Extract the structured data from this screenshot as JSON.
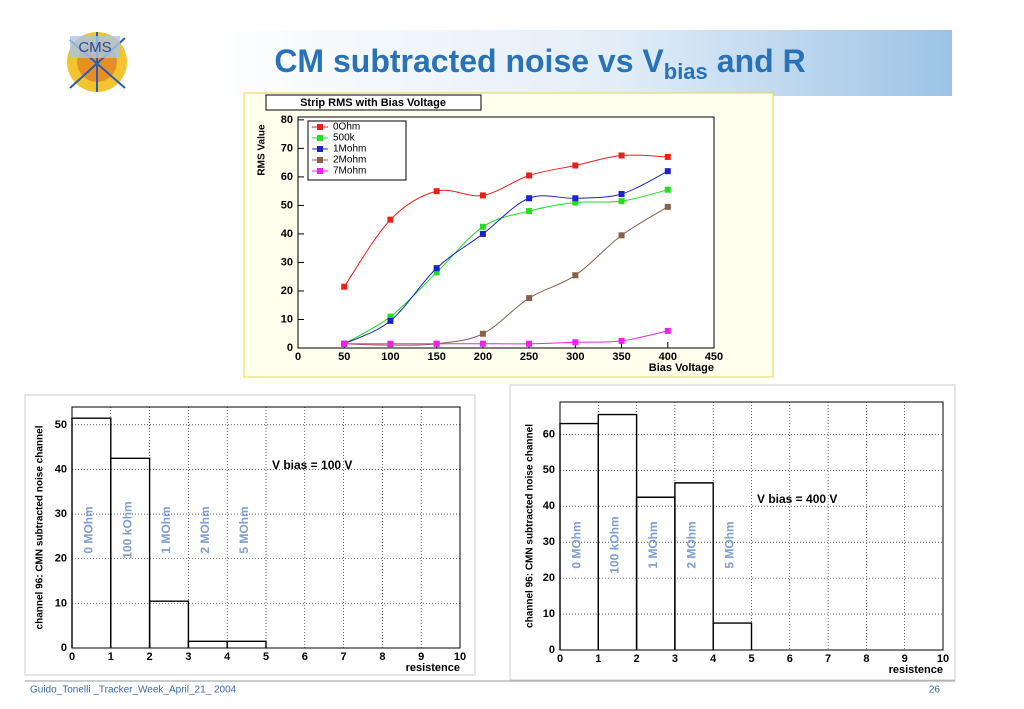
{
  "title": {
    "main": "CM subtracted noise vs V",
    "sub": "bias",
    "end": "and R"
  },
  "footer": {
    "left": "Guido_Tonelli _Tracker_Week_April_21_ 2004",
    "page": "26"
  },
  "chart_data": [
    {
      "type": "line",
      "title": "Strip RMS with Bias Voltage",
      "xlabel": "Bias Voltage",
      "ylabel": "RMS Value",
      "x": [
        50,
        100,
        150,
        200,
        250,
        300,
        350,
        400
      ],
      "series": [
        {
          "name": "0Ohm",
          "color": "#e8201c",
          "values": [
            21.5,
            45,
            55,
            53.5,
            60.5,
            64,
            67.5,
            67
          ]
        },
        {
          "name": "500k",
          "color": "#22dd22",
          "values": [
            1.5,
            11,
            26.5,
            42.5,
            48,
            51,
            51.5,
            55.5
          ]
        },
        {
          "name": "1Mohm",
          "color": "#1a22c8",
          "values": [
            1.5,
            9.5,
            28,
            40,
            52.5,
            52.5,
            54,
            62
          ]
        },
        {
          "name": "2Mohm",
          "color": "#8a6048",
          "values": [
            1.5,
            1,
            1.5,
            5,
            17.5,
            25.5,
            39.5,
            49.5
          ]
        },
        {
          "name": "7Mohm",
          "color": "#ee22ee",
          "values": [
            1.5,
            1.5,
            1.5,
            1.5,
            1.5,
            2,
            2.5,
            6
          ]
        }
      ],
      "xlim": [
        0,
        450
      ],
      "xticks": [
        0,
        50,
        100,
        150,
        200,
        250,
        300,
        350,
        400,
        450
      ],
      "ylim": [
        0,
        81
      ],
      "yticks": [
        0,
        10,
        20,
        30,
        40,
        50,
        60,
        70,
        80
      ],
      "grid": false,
      "legend": "upper left"
    },
    {
      "type": "histogram",
      "xlabel": "resistence",
      "ylabel": "channel 96:  CMN subtracted noise channel",
      "bins": [
        0,
        1,
        2,
        3,
        4,
        5
      ],
      "counts": [
        51.5,
        42.5,
        10.5,
        1.5,
        1.5
      ],
      "color": "#000000",
      "xlim": [
        0,
        10
      ],
      "xticks": [
        0,
        1,
        2,
        3,
        4,
        5,
        6,
        7,
        8,
        9,
        10
      ],
      "ylim": [
        0,
        54
      ],
      "yticks": [
        0,
        10,
        20,
        30,
        40,
        50
      ],
      "grid": true,
      "annotation": "V bias = 100 V",
      "bin_labels": [
        "0 MOhm",
        "100 kOhm",
        "1 MOhm",
        "2 MOhm",
        "5 MOhm"
      ]
    },
    {
      "type": "histogram",
      "xlabel": "resistence",
      "ylabel": "channel 96:  CMN subtracted noise channel",
      "bins": [
        0,
        1,
        2,
        3,
        4,
        5
      ],
      "counts": [
        63,
        65.5,
        42.5,
        46.5,
        7.5
      ],
      "color": "#000000",
      "xlim": [
        0,
        10
      ],
      "xticks": [
        0,
        1,
        2,
        3,
        4,
        5,
        6,
        7,
        8,
        9,
        10
      ],
      "ylim": [
        0,
        69
      ],
      "yticks": [
        0,
        10,
        20,
        30,
        40,
        50,
        60
      ],
      "grid": true,
      "annotation": "V bias = 400 V",
      "bin_labels": [
        "0 MOhm",
        "100 kOhm",
        "1 MOhm",
        "2 MOhm",
        "5 MOhm"
      ]
    }
  ]
}
